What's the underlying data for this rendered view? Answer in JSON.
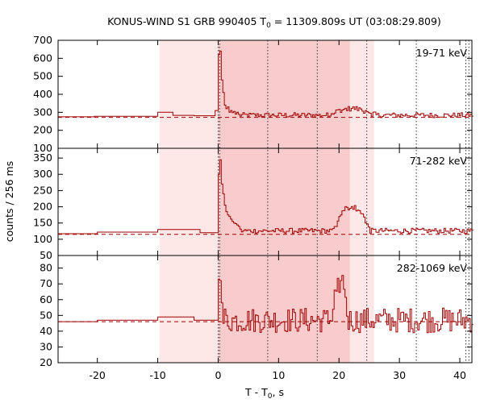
{
  "title": {
    "prefix": "KONUS-WIND S1 GRB 990405 T",
    "sub": "0",
    "suffix": " = 11309.809s UT (03:08:29.809)"
  },
  "xlabel": {
    "prefix": "T - T",
    "sub": "0",
    "suffix": ", s"
  },
  "ylabel": "counts / 256 ms",
  "colors": {
    "curve": "#a00000",
    "band_light": "#fde7e7",
    "band_dark": "#f8cbcc",
    "frame": "#000000"
  },
  "chart_data": {
    "type": "line",
    "xlim": [
      -26.5,
      42
    ],
    "x_ticks": [
      -20,
      -10,
      0,
      10,
      20,
      30,
      40
    ],
    "shaded_bands": [
      {
        "from": -9.7,
        "to": 25.8,
        "shade": "light"
      },
      {
        "from": 0.0,
        "to": 21.8,
        "shade": "dark"
      }
    ],
    "markers": [
      0.0,
      0.256,
      8.2,
      16.4,
      24.6,
      32.8,
      41.0,
      41.5
    ],
    "panels": [
      {
        "label": "19-71 keV",
        "ylim": [
          100,
          700
        ],
        "y_ticks": [
          100,
          200,
          300,
          400,
          500,
          600,
          700
        ],
        "background": 272,
        "pre_steps": [
          [
            -26.5,
            -20.5,
            275
          ],
          [
            -20.5,
            -10.0,
            278
          ],
          [
            -10.0,
            -7.5,
            300
          ],
          [
            -7.5,
            -4.0,
            283
          ],
          [
            -4.0,
            -0.5,
            281
          ],
          [
            -0.5,
            0.0,
            310
          ]
        ],
        "burst": [
          [
            0.0,
            620
          ],
          [
            0.256,
            640
          ],
          [
            0.512,
            480
          ],
          [
            0.768,
            410
          ],
          [
            1.024,
            340
          ],
          [
            1.28,
            320
          ],
          [
            1.536,
            330
          ],
          [
            1.79,
            300
          ],
          [
            2.05,
            310
          ],
          [
            2.3,
            298
          ],
          [
            2.56,
            305
          ],
          [
            2.82,
            290
          ],
          [
            3.07,
            300
          ]
        ],
        "base": 284,
        "late_bump": {
          "from": 18.0,
          "to": 26.0,
          "add": 35
        },
        "noise": 14
      },
      {
        "label": "71-282 keV",
        "ylim": [
          50,
          380
        ],
        "y_ticks": [
          50,
          100,
          150,
          200,
          250,
          300,
          350
        ],
        "background": 115,
        "pre_steps": [
          [
            -26.5,
            -20.0,
            117
          ],
          [
            -20.0,
            -10.0,
            122
          ],
          [
            -10.0,
            -3.0,
            130
          ],
          [
            -3.0,
            0.0,
            120
          ]
        ],
        "burst": [
          [
            0.0,
            300
          ],
          [
            0.256,
            345
          ],
          [
            0.512,
            270
          ],
          [
            0.768,
            240
          ],
          [
            1.024,
            205
          ],
          [
            1.28,
            185
          ],
          [
            1.536,
            175
          ],
          [
            1.79,
            170
          ],
          [
            2.05,
            162
          ],
          [
            2.3,
            155
          ],
          [
            2.56,
            150
          ],
          [
            2.82,
            148
          ],
          [
            3.07,
            144
          ],
          [
            3.33,
            140
          ]
        ],
        "base": 126,
        "late_bump": {
          "from": 19.0,
          "to": 25.0,
          "add": 75
        },
        "noise": 8
      },
      {
        "label": "282-1069 keV",
        "ylim": [
          20,
          88
        ],
        "y_ticks": [
          20,
          30,
          40,
          50,
          60,
          70,
          80
        ],
        "background": 46,
        "pre_steps": [
          [
            -26.5,
            -20.0,
            46
          ],
          [
            -20.0,
            -10.0,
            47
          ],
          [
            -10.0,
            -4.0,
            49
          ],
          [
            -4.0,
            0.0,
            47
          ]
        ],
        "burst": [
          [
            0.0,
            73
          ],
          [
            0.256,
            72
          ],
          [
            0.512,
            58
          ],
          [
            0.768,
            45
          ],
          [
            1.024,
            54
          ],
          [
            1.28,
            50
          ]
        ],
        "base": 47,
        "late_bump": {
          "from": 18.5,
          "to": 21.5,
          "add": 20
        },
        "noise": 8
      }
    ]
  }
}
